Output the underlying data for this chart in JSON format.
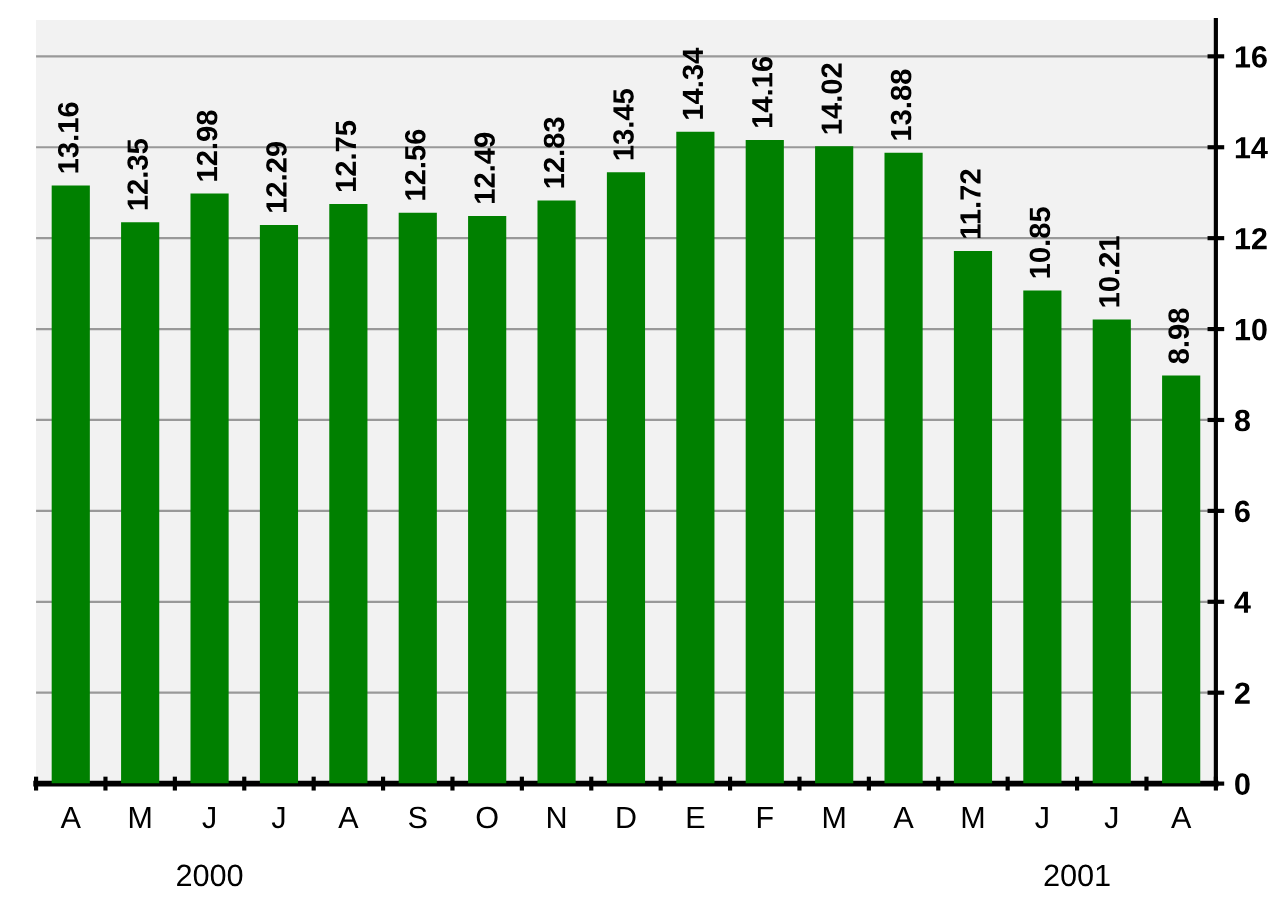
{
  "chart_data": {
    "type": "bar",
    "categories": [
      "A",
      "M",
      "J",
      "J",
      "A",
      "S",
      "O",
      "N",
      "D",
      "E",
      "F",
      "M",
      "A",
      "M",
      "J",
      "J",
      "A"
    ],
    "values": [
      13.16,
      12.35,
      12.98,
      12.29,
      12.75,
      12.56,
      12.49,
      12.83,
      13.45,
      14.34,
      14.16,
      14.02,
      13.88,
      11.72,
      10.85,
      10.21,
      8.98
    ],
    "color": "#008000",
    "ylim": [
      0,
      16.8
    ],
    "yticks": [
      0,
      2,
      4,
      6,
      8,
      10,
      12,
      14,
      16
    ],
    "grid": "y",
    "data_labels": true,
    "annotations": [
      "2000",
      "2001"
    ]
  }
}
